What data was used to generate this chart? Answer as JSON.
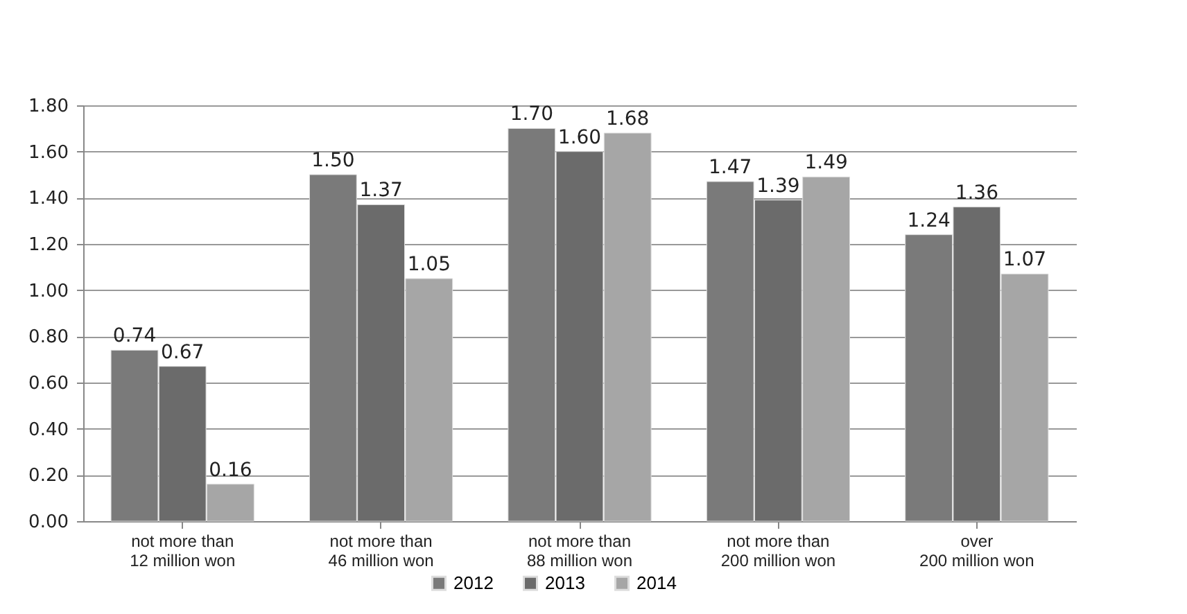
{
  "chart_data": {
    "type": "bar",
    "categories": [
      "not more than 12 million won",
      "not more than 46 million won",
      "not more than 88 million won",
      "not more than 200 million won",
      "over 200 million won"
    ],
    "series": [
      {
        "name": "2012",
        "color": "#7a7a7a",
        "values": [
          0.74,
          1.5,
          1.7,
          1.47,
          1.24
        ],
        "value_labels": [
          "0.74",
          "1.50",
          "1.70",
          "1.47",
          "1.24"
        ]
      },
      {
        "name": "2013",
        "color": "#6b6b6b",
        "values": [
          0.67,
          1.37,
          1.6,
          1.39,
          1.36
        ],
        "value_labels": [
          "0.67",
          "1.37",
          "1.60",
          "1.39",
          "1.36"
        ]
      },
      {
        "name": "2014",
        "color": "#a6a6a6",
        "values": [
          0.16,
          1.05,
          1.68,
          1.49,
          1.07
        ],
        "value_labels": [
          "0.16",
          "1.05",
          "1.68",
          "1.49",
          "1.07"
        ]
      }
    ],
    "ylim": [
      0,
      1.8
    ],
    "yticks": [
      {
        "value": 0,
        "label": "0.00"
      },
      {
        "value": 0.2,
        "label": "0.20"
      },
      {
        "value": 0.4,
        "label": "0.40"
      },
      {
        "value": 0.6,
        "label": "0.60"
      },
      {
        "value": 0.8,
        "label": "0.80"
      },
      {
        "value": 1.0,
        "label": "1.00"
      },
      {
        "value": 1.2,
        "label": "1.20"
      },
      {
        "value": 1.4,
        "label": "1.40"
      },
      {
        "value": 1.6,
        "label": "1.60"
      },
      {
        "value": 1.8,
        "label": "1.80"
      }
    ],
    "grid": "y",
    "legend": "bottom"
  }
}
